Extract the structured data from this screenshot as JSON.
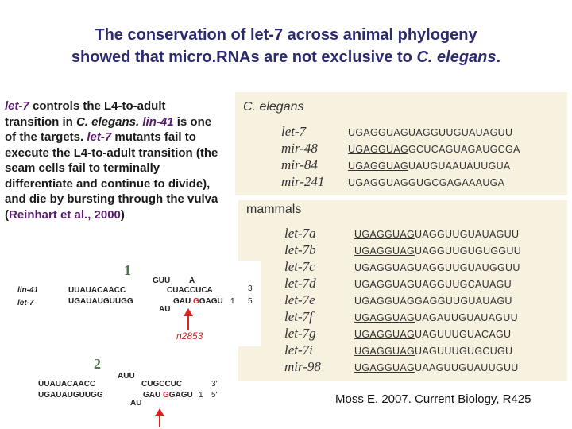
{
  "title": {
    "line1": "The conservation of let-7 across animal phylogeny",
    "line2_prefix": "showed that micro.RNAs are not exclusive to ",
    "line2_species": "C. elegans",
    "line2_suffix": "."
  },
  "paragraph": {
    "t1": "let-7",
    "t2": " controls the L4-to-adult transition in ",
    "t3": "C. elegans.",
    "t4": " ",
    "t5": "lin-41",
    "t6": " is one of the targets. ",
    "t7": "let-7",
    "t8": " mutants fail to execute the L4-to-adult transition (the seam cells fail to terminally differentiate and continue to divide), and die by bursting through the vulva (",
    "t9": "Reinhart et al., 2000",
    "t10": ")"
  },
  "celegans_panel": {
    "heading": "C. elegans",
    "rows": [
      {
        "name": "let-7",
        "seed": "UGAGGUAG",
        "rest": "UAGGUUGUAUAGUU"
      },
      {
        "name": "mir-48",
        "seed": "UGAGGUAG",
        "rest": "GCUCAGUAGAUGCGA"
      },
      {
        "name": "mir-84",
        "seed": "UGAGGUAG",
        "rest": "UAUGUAAUAUUGUA"
      },
      {
        "name": "mir-241",
        "seed": "UGAGGUAG",
        "rest": "GUGCGAGAAAUGA"
      }
    ]
  },
  "mammals_panel": {
    "heading": "mammals",
    "rows": [
      {
        "name": "let-7a",
        "seed": "UGAGGUAG",
        "rest": "UAGGUUGUAUAGUU"
      },
      {
        "name": "let-7b",
        "seed": "UGAGGUAG",
        "rest": "UAGGUUGUGUGGUU"
      },
      {
        "name": "let-7c",
        "seed": "UGAGGUAG",
        "rest": "UAGGUUGUAUGGUU"
      },
      {
        "name": "let-7d",
        "seed": "",
        "rest": "UGAGGUAGUAGGUUGCAUAGU"
      },
      {
        "name": "let-7e",
        "seed": "",
        "rest": "UGAGGUAGGAGGUUGUAUAGU"
      },
      {
        "name": "let-7f",
        "seed": "UGAGGUAG",
        "rest": "UAGAUUGUAUAGUU"
      },
      {
        "name": "let-7g",
        "seed": "UGAGGUAG",
        "rest": "UAGUUUGUACAGU"
      },
      {
        "name": "let-7i",
        "seed": "UGAGGUAG",
        "rest": "UAGUUUGUGCUGU"
      },
      {
        "name": "mir-98",
        "seed": "UGAGGUAG",
        "rest": "UAAGUUGUAUUGUU"
      }
    ]
  },
  "site1": {
    "number": "1",
    "label_top": "lin-41",
    "label_bottom": "let-7",
    "top_seq": "UUAUACAACC",
    "top_loop": "GUU",
    "top_a": "A",
    "top_right": "CUACCUCA",
    "three": "3'",
    "bottom_seq": "UGAUAUGUUGG",
    "bottom_loop": "AU",
    "bottom_right_a": "GAU ",
    "bottom_right_g": "G",
    "bottom_right_b": "GAGU",
    "one": "1",
    "five": "5'",
    "mutant": "n2853"
  },
  "site2": {
    "number": "2",
    "top_seq": "UUAUACAACC",
    "top_loop": "AUU",
    "top_right": "CUGCCUC",
    "three": "3'",
    "bottom_seq": "UGAUAUGUUGG",
    "bottom_loop": "AU",
    "bottom_right_a": "GAU ",
    "bottom_right_g": "G",
    "bottom_right_b": "GAGU",
    "one": "1",
    "five": "5'"
  },
  "footer": "Moss E. 2007. Current Biology, R425"
}
